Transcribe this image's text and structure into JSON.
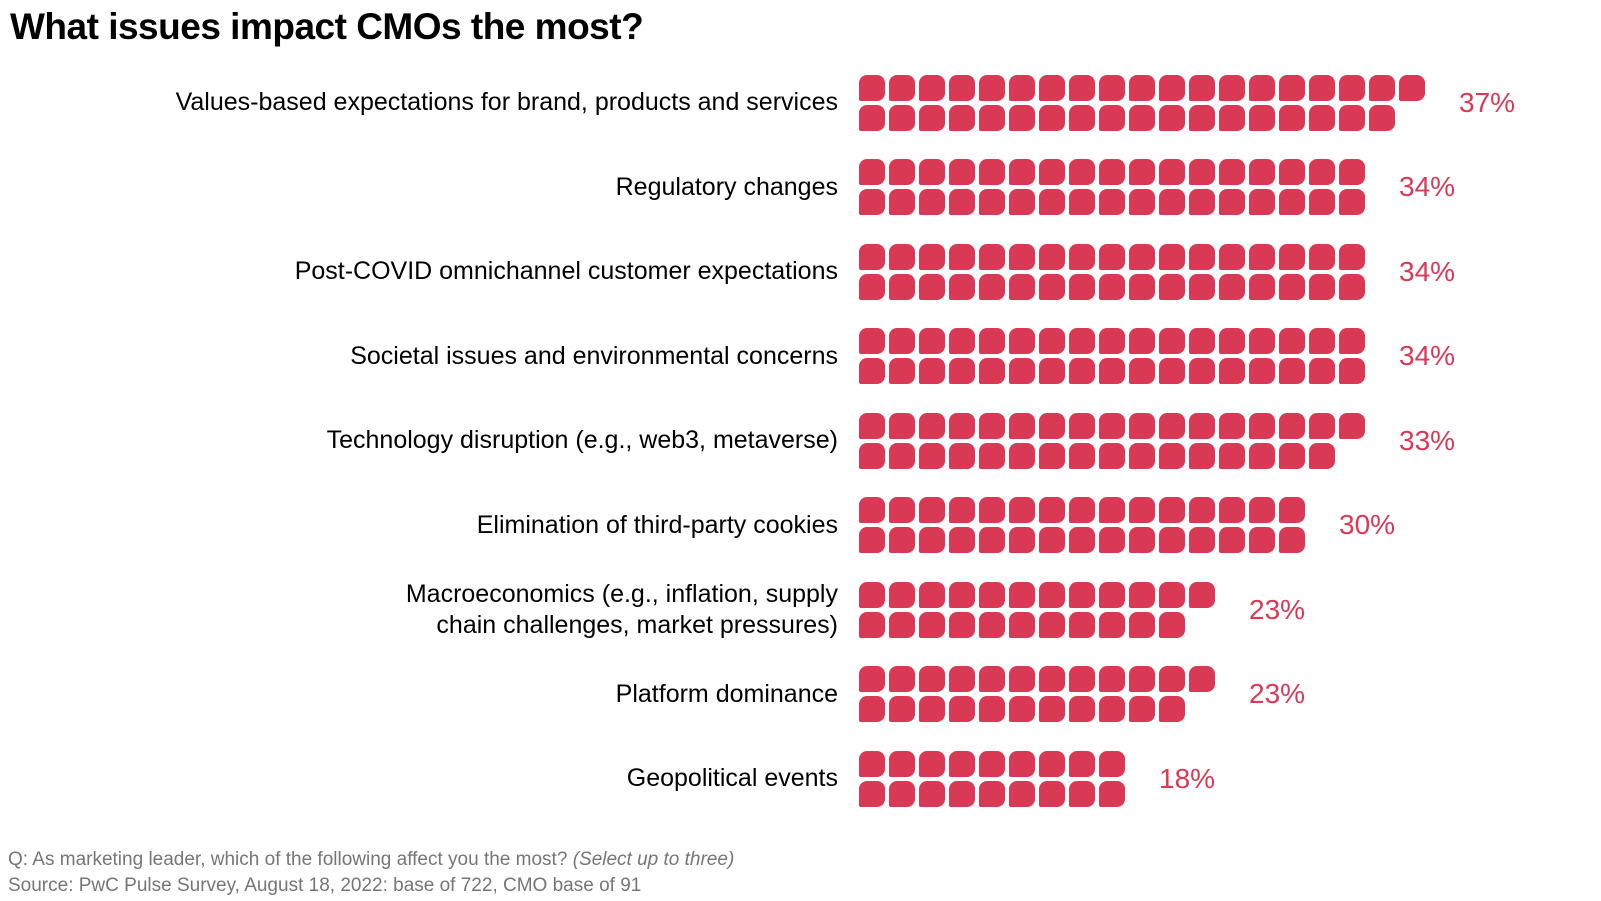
{
  "title": "What issues impact CMOs the most?",
  "accent_color": "#d93954",
  "text_color": "#000000",
  "footer": {
    "question_prefix": "Q: As marketing leader, which of the following affect you the most? ",
    "question_italic": "(Select up to three)",
    "source": "Source: PwC Pulse Survey, August 18, 2022: base of 722, CMO base of 91",
    "color": "#767676"
  },
  "chart_data": {
    "type": "bar",
    "variant": "pictogram-waffle",
    "orientation": "horizontal",
    "unit_per_square_pct": 1,
    "squares_layout": "two stacked lines per category: top = ceil(value/2), bottom = floor(value/2)",
    "title": "What issues impact CMOs the most?",
    "xlabel": "",
    "ylabel": "",
    "legend": "none",
    "axes_visible": false,
    "grid": false,
    "categories": [
      "Values-based expectations for brand, products and services",
      "Regulatory changes",
      "Post-COVID omnichannel customer expectations",
      "Societal issues and environmental concerns",
      "Technology disruption (e.g., web3, metaverse)",
      "Elimination of third-party cookies",
      "Macroeconomics (e.g., inflation, supply\nchain challenges, market pressures)",
      "Platform dominance",
      "Geopolitical events"
    ],
    "values": [
      37,
      34,
      34,
      34,
      33,
      30,
      23,
      23,
      18
    ],
    "value_labels": [
      "37%",
      "34%",
      "34%",
      "34%",
      "33%",
      "30%",
      "23%",
      "23%",
      "18%"
    ]
  }
}
